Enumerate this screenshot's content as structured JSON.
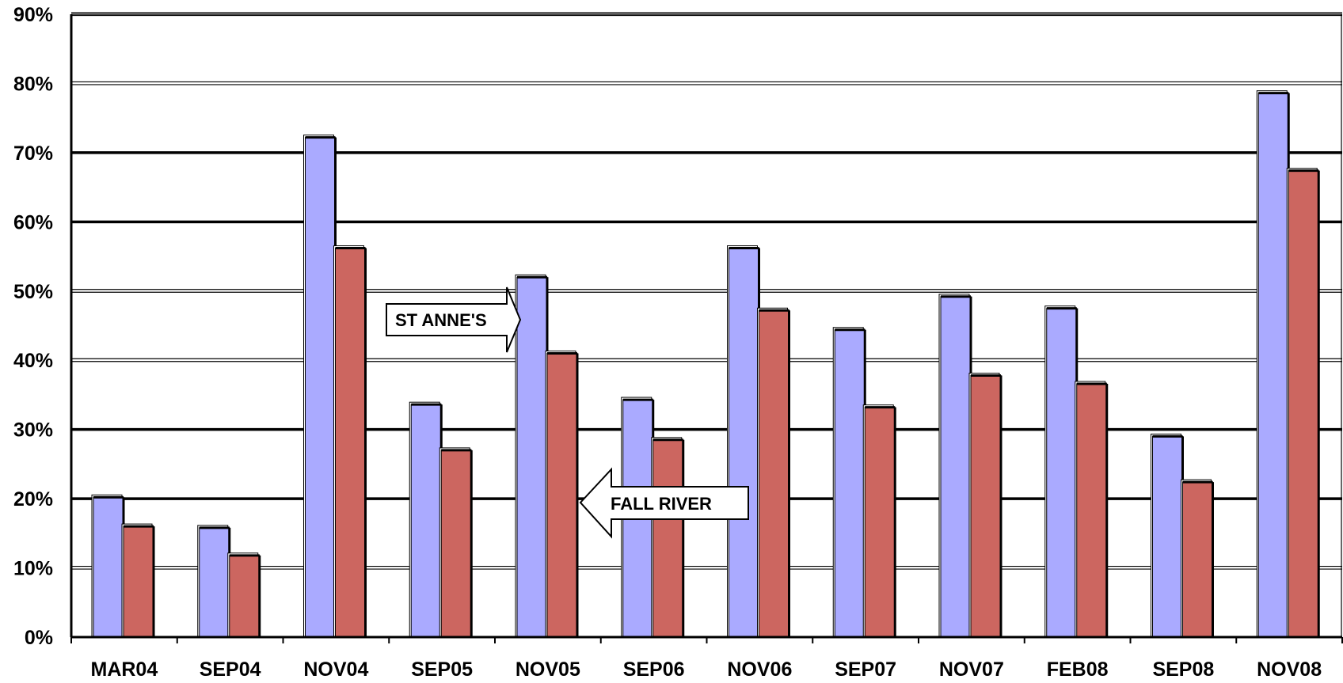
{
  "chart_data": {
    "type": "bar",
    "categories": [
      "MAR04",
      "SEP04",
      "NOV04",
      "SEP05",
      "NOV05",
      "SEP06",
      "NOV06",
      "SEP07",
      "NOV07",
      "FEB08",
      "SEP08",
      "NOV08"
    ],
    "series": [
      {
        "name": "ST ANNE'S",
        "values": [
          20.2,
          15.8,
          72.2,
          33.6,
          52.0,
          34.3,
          56.2,
          44.4,
          49.2,
          47.5,
          29.0,
          78.6
        ]
      },
      {
        "name": "FALL RIVER",
        "values": [
          16.0,
          11.8,
          56.2,
          27.0,
          41.0,
          28.5,
          47.2,
          33.2,
          37.8,
          36.6,
          22.4,
          67.4
        ]
      }
    ],
    "y_ticks": [
      "0%",
      "10%",
      "20%",
      "30%",
      "40%",
      "50%",
      "60%",
      "70%",
      "80%",
      "90%"
    ],
    "ylim": [
      0,
      90
    ],
    "grid": true,
    "colors": {
      "series_1": "#aaaaff",
      "series_2": "#cc6660",
      "gridline": "#000000"
    },
    "callouts": [
      {
        "label": "ST ANNE'S",
        "points_to": "NOV05",
        "series": "ST ANNE'S",
        "direction": "right"
      },
      {
        "label": "FALL RIVER",
        "points_to": "NOV05",
        "series": "FALL RIVER",
        "direction": "left"
      }
    ]
  }
}
